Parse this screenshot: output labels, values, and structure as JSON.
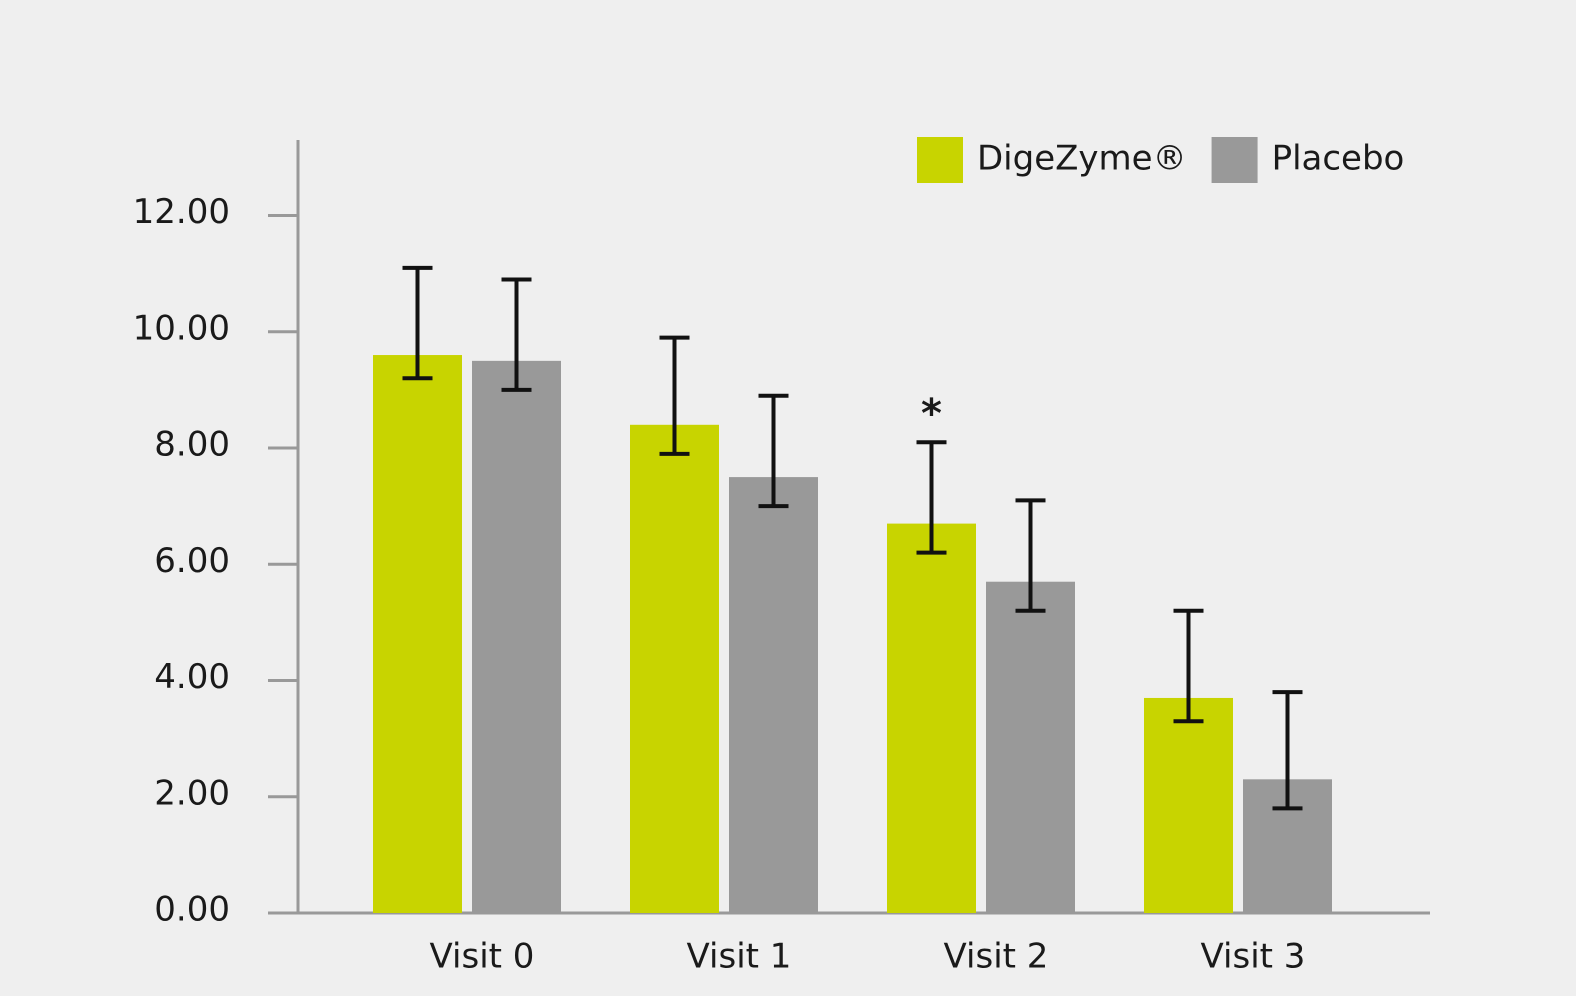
{
  "chart_data": {
    "type": "bar",
    "categories": [
      "Visit 0",
      "Visit 1",
      "Visit 2",
      "Visit 3"
    ],
    "series": [
      {
        "name": "DigeZyme®",
        "color": "#c8d400",
        "values": [
          9.6,
          8.4,
          6.7,
          3.7
        ],
        "error_plus": [
          1.5,
          1.5,
          1.4,
          1.5
        ],
        "error_minus": [
          0.4,
          0.5,
          0.5,
          0.4
        ]
      },
      {
        "name": "Placebo",
        "color": "#999999",
        "values": [
          9.5,
          7.5,
          5.7,
          2.3
        ],
        "error_plus": [
          1.4,
          1.4,
          1.4,
          1.5
        ],
        "error_minus": [
          0.5,
          0.5,
          0.5,
          0.5
        ]
      }
    ],
    "ylim": [
      0,
      13.3
    ],
    "yticks": [
      {
        "value": 0,
        "label": "0.00"
      },
      {
        "value": 2,
        "label": "2.00"
      },
      {
        "value": 4,
        "label": "4.00"
      },
      {
        "value": 6,
        "label": "6.00"
      },
      {
        "value": 8,
        "label": "8.00"
      },
      {
        "value": 10,
        "label": "10.00"
      },
      {
        "value": 12,
        "label": "12.00"
      }
    ],
    "annotations": [
      {
        "text": "*",
        "category": "Visit 2",
        "series": "DigeZyme®"
      }
    ],
    "legend": "top-right"
  }
}
